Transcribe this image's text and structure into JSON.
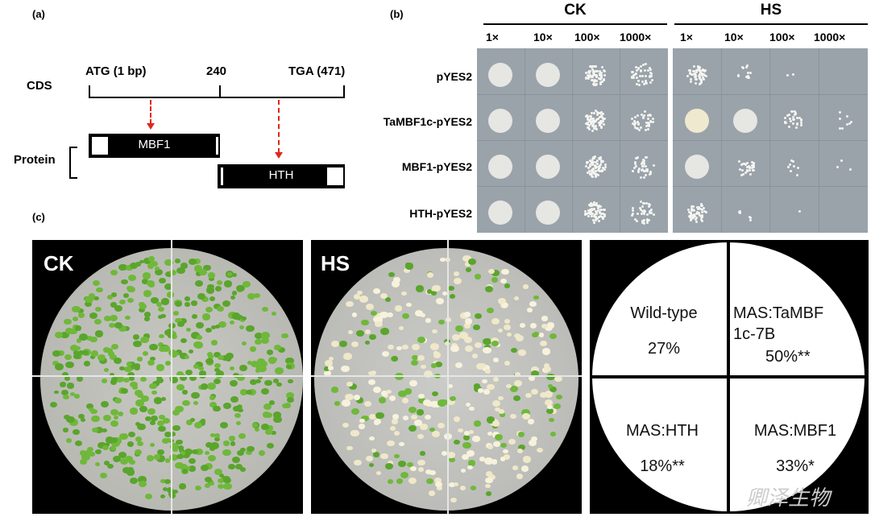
{
  "panel_a": {
    "label": "(a)",
    "cds_label": "CDS",
    "atg_label": "ATG (1 bp)",
    "mid_label": "240",
    "tga_label": "TGA (471)",
    "protein_label": "Protein",
    "mbf1_label": "MBF1",
    "hth_label": "HTH"
  },
  "panel_b": {
    "label": "(b)",
    "groups": [
      "CK",
      "HS"
    ],
    "dilutions": [
      "1×",
      "10×",
      "100×",
      "1000×"
    ],
    "strains": [
      "pYES2",
      "TaMBF1c-pYES2",
      "MBF1-pYES2",
      "HTH-pYES2"
    ],
    "colors": {
      "plate": "#9aa3aa",
      "spot": "#e6e6e2"
    }
  },
  "panel_c": {
    "label": "(c)",
    "ck_title": "CK",
    "hs_title": "HS",
    "pie": {
      "top_left": {
        "line1": "Wild-type",
        "line2": "27%"
      },
      "top_right": {
        "line1": "MAS:TaMBF",
        "line2": "1c-7B",
        "line3": "50%**"
      },
      "bottom_left": {
        "line1": "MAS:HTH",
        "line2": "18%**"
      },
      "bottom_right": {
        "line1": "MAS:MBF1",
        "line2": "33%*"
      }
    },
    "colors": {
      "green": "#5aa52c",
      "bleached": "#efe8c9"
    }
  },
  "watermark": "卿泽生物"
}
